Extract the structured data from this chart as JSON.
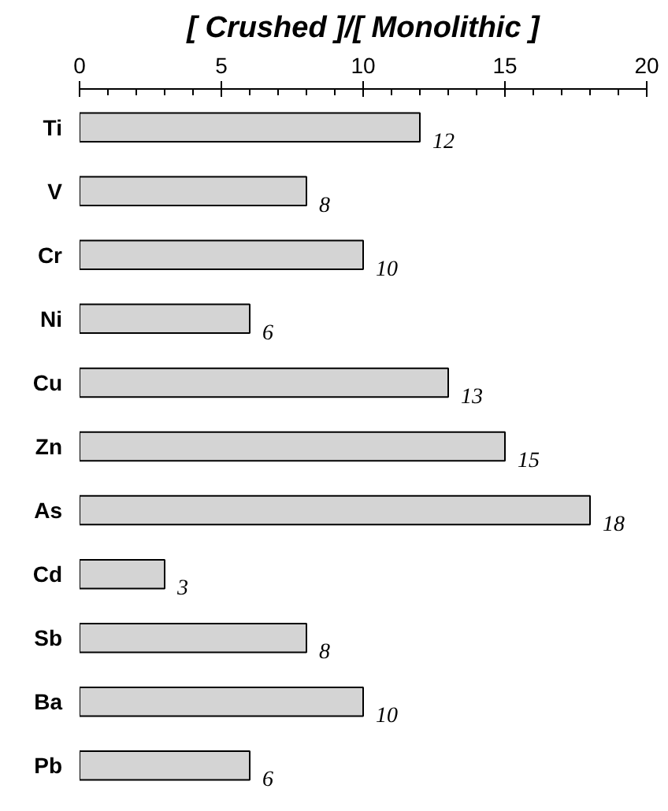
{
  "chart_data": {
    "type": "bar",
    "orientation": "horizontal",
    "title": "[ Crushed ]/[ Monolithic ]",
    "categories": [
      "Ti",
      "V",
      "Cr",
      "Ni",
      "Cu",
      "Zn",
      "As",
      "Cd",
      "Sb",
      "Ba",
      "Pb"
    ],
    "values": [
      12,
      8,
      10,
      6,
      13,
      15,
      18,
      3,
      8,
      10,
      6
    ],
    "color": "#d4d4d4",
    "data_labels": true,
    "grid": false,
    "xlim": [
      0,
      20
    ],
    "xticks": [
      0,
      {
        "value": 1,
        "label": null
      },
      {
        "value": 2,
        "label": null
      },
      {
        "value": 3,
        "label": null
      },
      {
        "value": 4,
        "label": null
      },
      5,
      {
        "value": 6,
        "label": null
      },
      {
        "value": 7,
        "label": null
      },
      {
        "value": 8,
        "label": null
      },
      {
        "value": 9,
        "label": null
      },
      10,
      {
        "value": 11,
        "label": null
      },
      {
        "value": 12,
        "label": null
      },
      {
        "value": 13,
        "label": null
      },
      {
        "value": 14,
        "label": null
      },
      15,
      {
        "value": 16,
        "label": null
      },
      {
        "value": 17,
        "label": null
      },
      {
        "value": 18,
        "label": null
      },
      {
        "value": 19,
        "label": null
      },
      20
    ]
  }
}
